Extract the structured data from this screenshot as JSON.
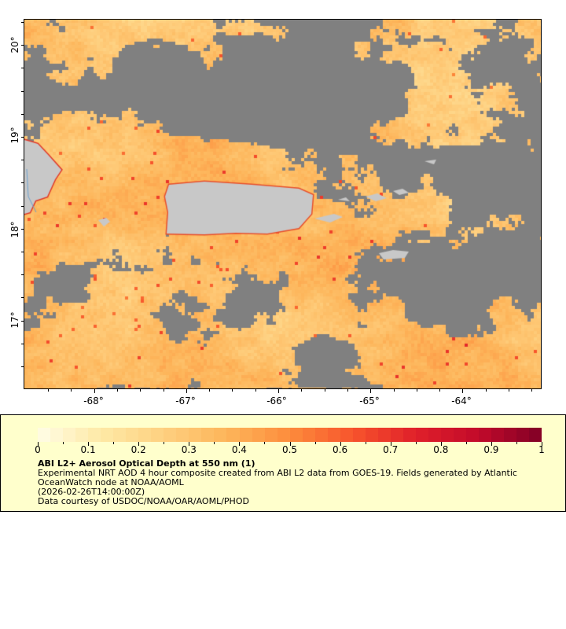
{
  "map": {
    "lon_ticks": [
      "-68°",
      "-67°",
      "-66°",
      "-65°",
      "-64°"
    ],
    "lat_ticks": [
      "20°",
      "19°",
      "18°",
      "17°"
    ],
    "colors": {
      "no_data": "#808080",
      "land": "#c8c8c8",
      "frame": "#000000"
    }
  },
  "legend": {
    "colorbar_ticks": [
      "0",
      "0.1",
      "0.2",
      "0.3",
      "0.4",
      "0.5",
      "0.6",
      "0.7",
      "0.8",
      "0.9",
      "1"
    ],
    "colorbar_range": [
      0,
      1
    ],
    "colorbar_stops": [
      "#fffde6",
      "#fee9a6",
      "#fed080",
      "#fdb55a",
      "#fd8c3c",
      "#f7542c",
      "#e0202a",
      "#c20a2a",
      "#800026"
    ],
    "title": "ABI L2+ Aerosol Optical Depth at 550 nm (1)",
    "line1": "Experimental NRT AOD 4 hour composite created from ABI L2 data from GOES-19. Fields generated by Atlantic",
    "line2": "OceanWatch node at NOAA/AOML",
    "line3": "(2026-02-26T14:00:00Z)",
    "line4": "Data courtesy of USDOC/NOAA/OAR/AOML/PHOD",
    "background": "#ffffcc"
  }
}
